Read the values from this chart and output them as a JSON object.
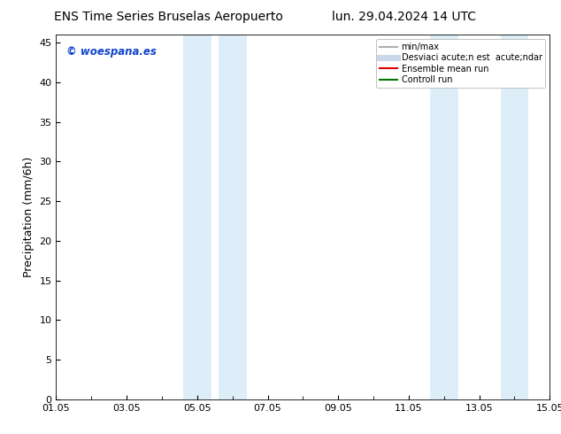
{
  "title_left": "ENS Time Series Bruselas Aeropuerto",
  "title_right": "lun. 29.04.2024 14 UTC",
  "ylabel": "Precipitation (mm/6h)",
  "watermark": "© woespana.es",
  "xlim": [
    0,
    14
  ],
  "ylim": [
    0,
    46
  ],
  "yticks": [
    0,
    5,
    10,
    15,
    20,
    25,
    30,
    35,
    40,
    45
  ],
  "xtick_labels": [
    "01.05",
    "03.05",
    "05.05",
    "07.05",
    "09.05",
    "11.05",
    "13.05",
    "15.05"
  ],
  "xtick_positions": [
    0,
    2,
    4,
    6,
    8,
    10,
    12,
    14
  ],
  "shaded_bands": [
    {
      "xmin": 3.6,
      "xmax": 4.4
    },
    {
      "xmin": 4.6,
      "xmax": 5.4
    },
    {
      "xmin": 10.6,
      "xmax": 11.4
    },
    {
      "xmin": 12.6,
      "xmax": 13.4
    }
  ],
  "shade_color": "#ddeef8",
  "background_color": "#ffffff",
  "legend_entries": [
    {
      "label": "min/max",
      "color": "#b0b0b0",
      "lw": 1.5
    },
    {
      "label": "Desviaci acute;n est  acute;ndar",
      "color": "#c8d8e8",
      "lw": 5
    },
    {
      "label": "Ensemble mean run",
      "color": "#dd0000",
      "lw": 1.5
    },
    {
      "label": "Controll run",
      "color": "#007700",
      "lw": 1.5
    }
  ],
  "title_fontsize": 10,
  "axis_fontsize": 9,
  "tick_fontsize": 8,
  "watermark_color": "#1144cc",
  "legend_fontsize": 7
}
